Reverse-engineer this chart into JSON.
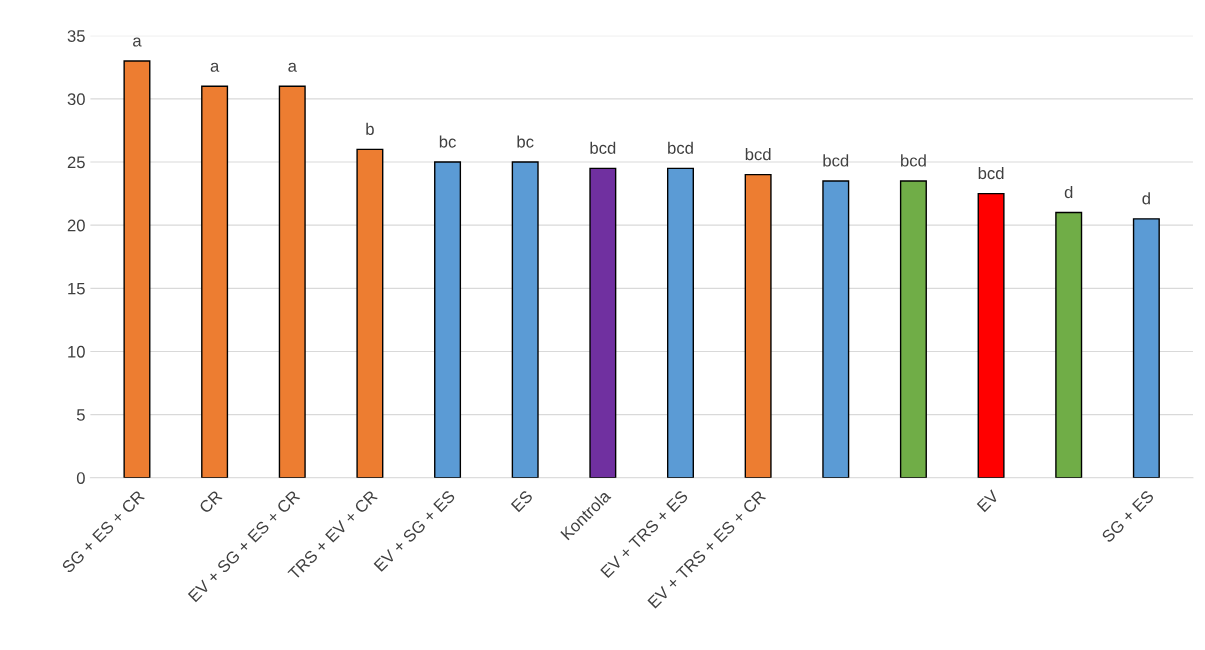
{
  "chart_data": {
    "type": "bar",
    "categories": [
      "SG + ES + CR",
      "CR",
      "EV + SG + ES + CR",
      "TRS + EV + CR",
      "EV + SG + ES",
      "ES",
      "Kontrola",
      "EV + TRS + ES",
      "EV + TRS + ES + CR",
      null,
      null,
      "EV",
      null,
      "SG + ES"
    ],
    "values": [
      33,
      31,
      31,
      26,
      25,
      25,
      24.5,
      24.5,
      24,
      23.5,
      23.5,
      22.5,
      21,
      20.5
    ],
    "colors": [
      "#ed7d31",
      "#ed7d31",
      "#ed7d31",
      "#ed7d31",
      "#5b9bd5",
      "#5b9bd5",
      "#7030a0",
      "#5b9bd5",
      "#ed7d31",
      "#5b9bd5",
      "#70ad47",
      "#ff0000",
      "#70ad47",
      "#5b9bd5"
    ],
    "value_labels": [
      "a",
      "a",
      "a",
      "b",
      "bc",
      "bc",
      "bcd",
      "bcd",
      "bcd",
      "bcd",
      "bcd",
      "bcd",
      "d",
      "d"
    ],
    "ylim": [
      0,
      35
    ],
    "yticks": [
      0,
      5,
      10,
      15,
      20,
      25,
      30,
      35
    ],
    "grid": "y",
    "legend": false
  }
}
